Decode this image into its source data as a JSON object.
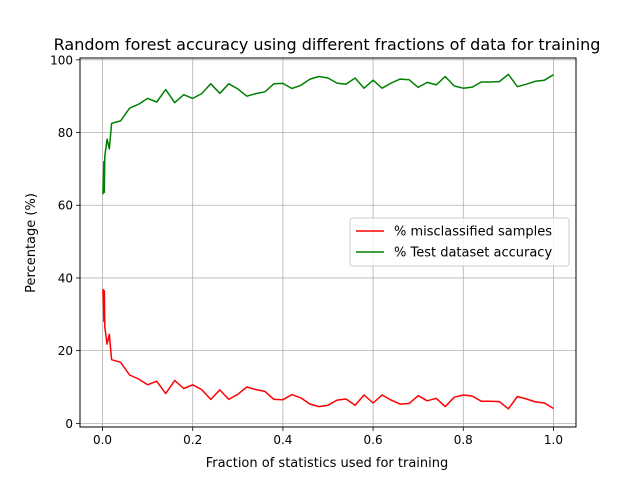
{
  "chart_data": {
    "type": "line",
    "title": "Random forest accuracy using different fractions of data for training",
    "xlabel": "Fraction of statistics used for training",
    "ylabel": "Percentage (%)",
    "xlim": [
      -0.05,
      1.05
    ],
    "ylim": [
      -1,
      100.5
    ],
    "xticks": [
      0.0,
      0.2,
      0.4,
      0.6,
      0.8,
      1.0
    ],
    "xtick_labels": [
      "0.0",
      "0.2",
      "0.4",
      "0.6",
      "0.8",
      "1.0"
    ],
    "yticks": [
      0,
      20,
      40,
      60,
      80,
      100
    ],
    "ytick_labels": [
      "0",
      "20",
      "40",
      "60",
      "80",
      "100"
    ],
    "grid": true,
    "legend_position": "center-right",
    "series": [
      {
        "name": "% misclassified samples",
        "color": "#ff0000",
        "x": [
          0.001,
          0.002,
          0.003,
          0.004,
          0.005,
          0.01,
          0.015,
          0.02,
          0.04,
          0.06,
          0.08,
          0.1,
          0.12,
          0.14,
          0.16,
          0.18,
          0.2,
          0.22,
          0.24,
          0.26,
          0.28,
          0.3,
          0.32,
          0.34,
          0.36,
          0.38,
          0.4,
          0.42,
          0.44,
          0.46,
          0.48,
          0.5,
          0.52,
          0.54,
          0.56,
          0.58,
          0.6,
          0.62,
          0.64,
          0.66,
          0.68,
          0.7,
          0.72,
          0.74,
          0.76,
          0.78,
          0.8,
          0.82,
          0.84,
          0.86,
          0.88,
          0.9,
          0.92,
          0.94,
          0.96,
          0.98,
          1.0
        ],
        "y": [
          37.0,
          33.0,
          28.0,
          36.5,
          26.5,
          21.8,
          24.5,
          17.5,
          16.8,
          13.3,
          12.2,
          10.6,
          11.6,
          8.2,
          11.8,
          9.6,
          10.6,
          9.3,
          6.6,
          9.2,
          6.6,
          8.0,
          10.0,
          9.3,
          8.8,
          6.6,
          6.5,
          7.9,
          7.0,
          5.3,
          4.6,
          5.0,
          6.4,
          6.7,
          5.0,
          7.8,
          5.6,
          7.8,
          6.4,
          5.3,
          5.5,
          7.6,
          6.2,
          6.9,
          4.6,
          7.2,
          7.8,
          7.5,
          6.1,
          6.1,
          6.0,
          4.0,
          7.4,
          6.7,
          5.9,
          5.6,
          4.1
        ]
      },
      {
        "name": "% Test dataset accuracy",
        "color": "#008000",
        "x": [
          0.001,
          0.002,
          0.003,
          0.004,
          0.005,
          0.01,
          0.015,
          0.02,
          0.04,
          0.06,
          0.08,
          0.1,
          0.12,
          0.14,
          0.16,
          0.18,
          0.2,
          0.22,
          0.24,
          0.26,
          0.28,
          0.3,
          0.32,
          0.34,
          0.36,
          0.38,
          0.4,
          0.42,
          0.44,
          0.46,
          0.48,
          0.5,
          0.52,
          0.54,
          0.56,
          0.58,
          0.6,
          0.62,
          0.64,
          0.66,
          0.68,
          0.7,
          0.72,
          0.74,
          0.76,
          0.78,
          0.8,
          0.82,
          0.84,
          0.86,
          0.88,
          0.9,
          0.92,
          0.94,
          0.96,
          0.98,
          1.0
        ],
        "y": [
          63.0,
          67.0,
          72.0,
          63.5,
          73.5,
          78.2,
          75.5,
          82.5,
          83.2,
          86.7,
          87.8,
          89.4,
          88.4,
          91.8,
          88.2,
          90.4,
          89.4,
          90.7,
          93.4,
          90.8,
          93.4,
          92.0,
          90.0,
          90.7,
          91.2,
          93.4,
          93.5,
          92.1,
          93.0,
          94.7,
          95.4,
          95.0,
          93.6,
          93.3,
          95.0,
          92.2,
          94.4,
          92.2,
          93.6,
          94.7,
          94.5,
          92.4,
          93.8,
          93.1,
          95.4,
          92.8,
          92.2,
          92.5,
          93.9,
          93.9,
          94.0,
          96.0,
          92.6,
          93.3,
          94.1,
          94.4,
          95.9
        ]
      }
    ]
  }
}
